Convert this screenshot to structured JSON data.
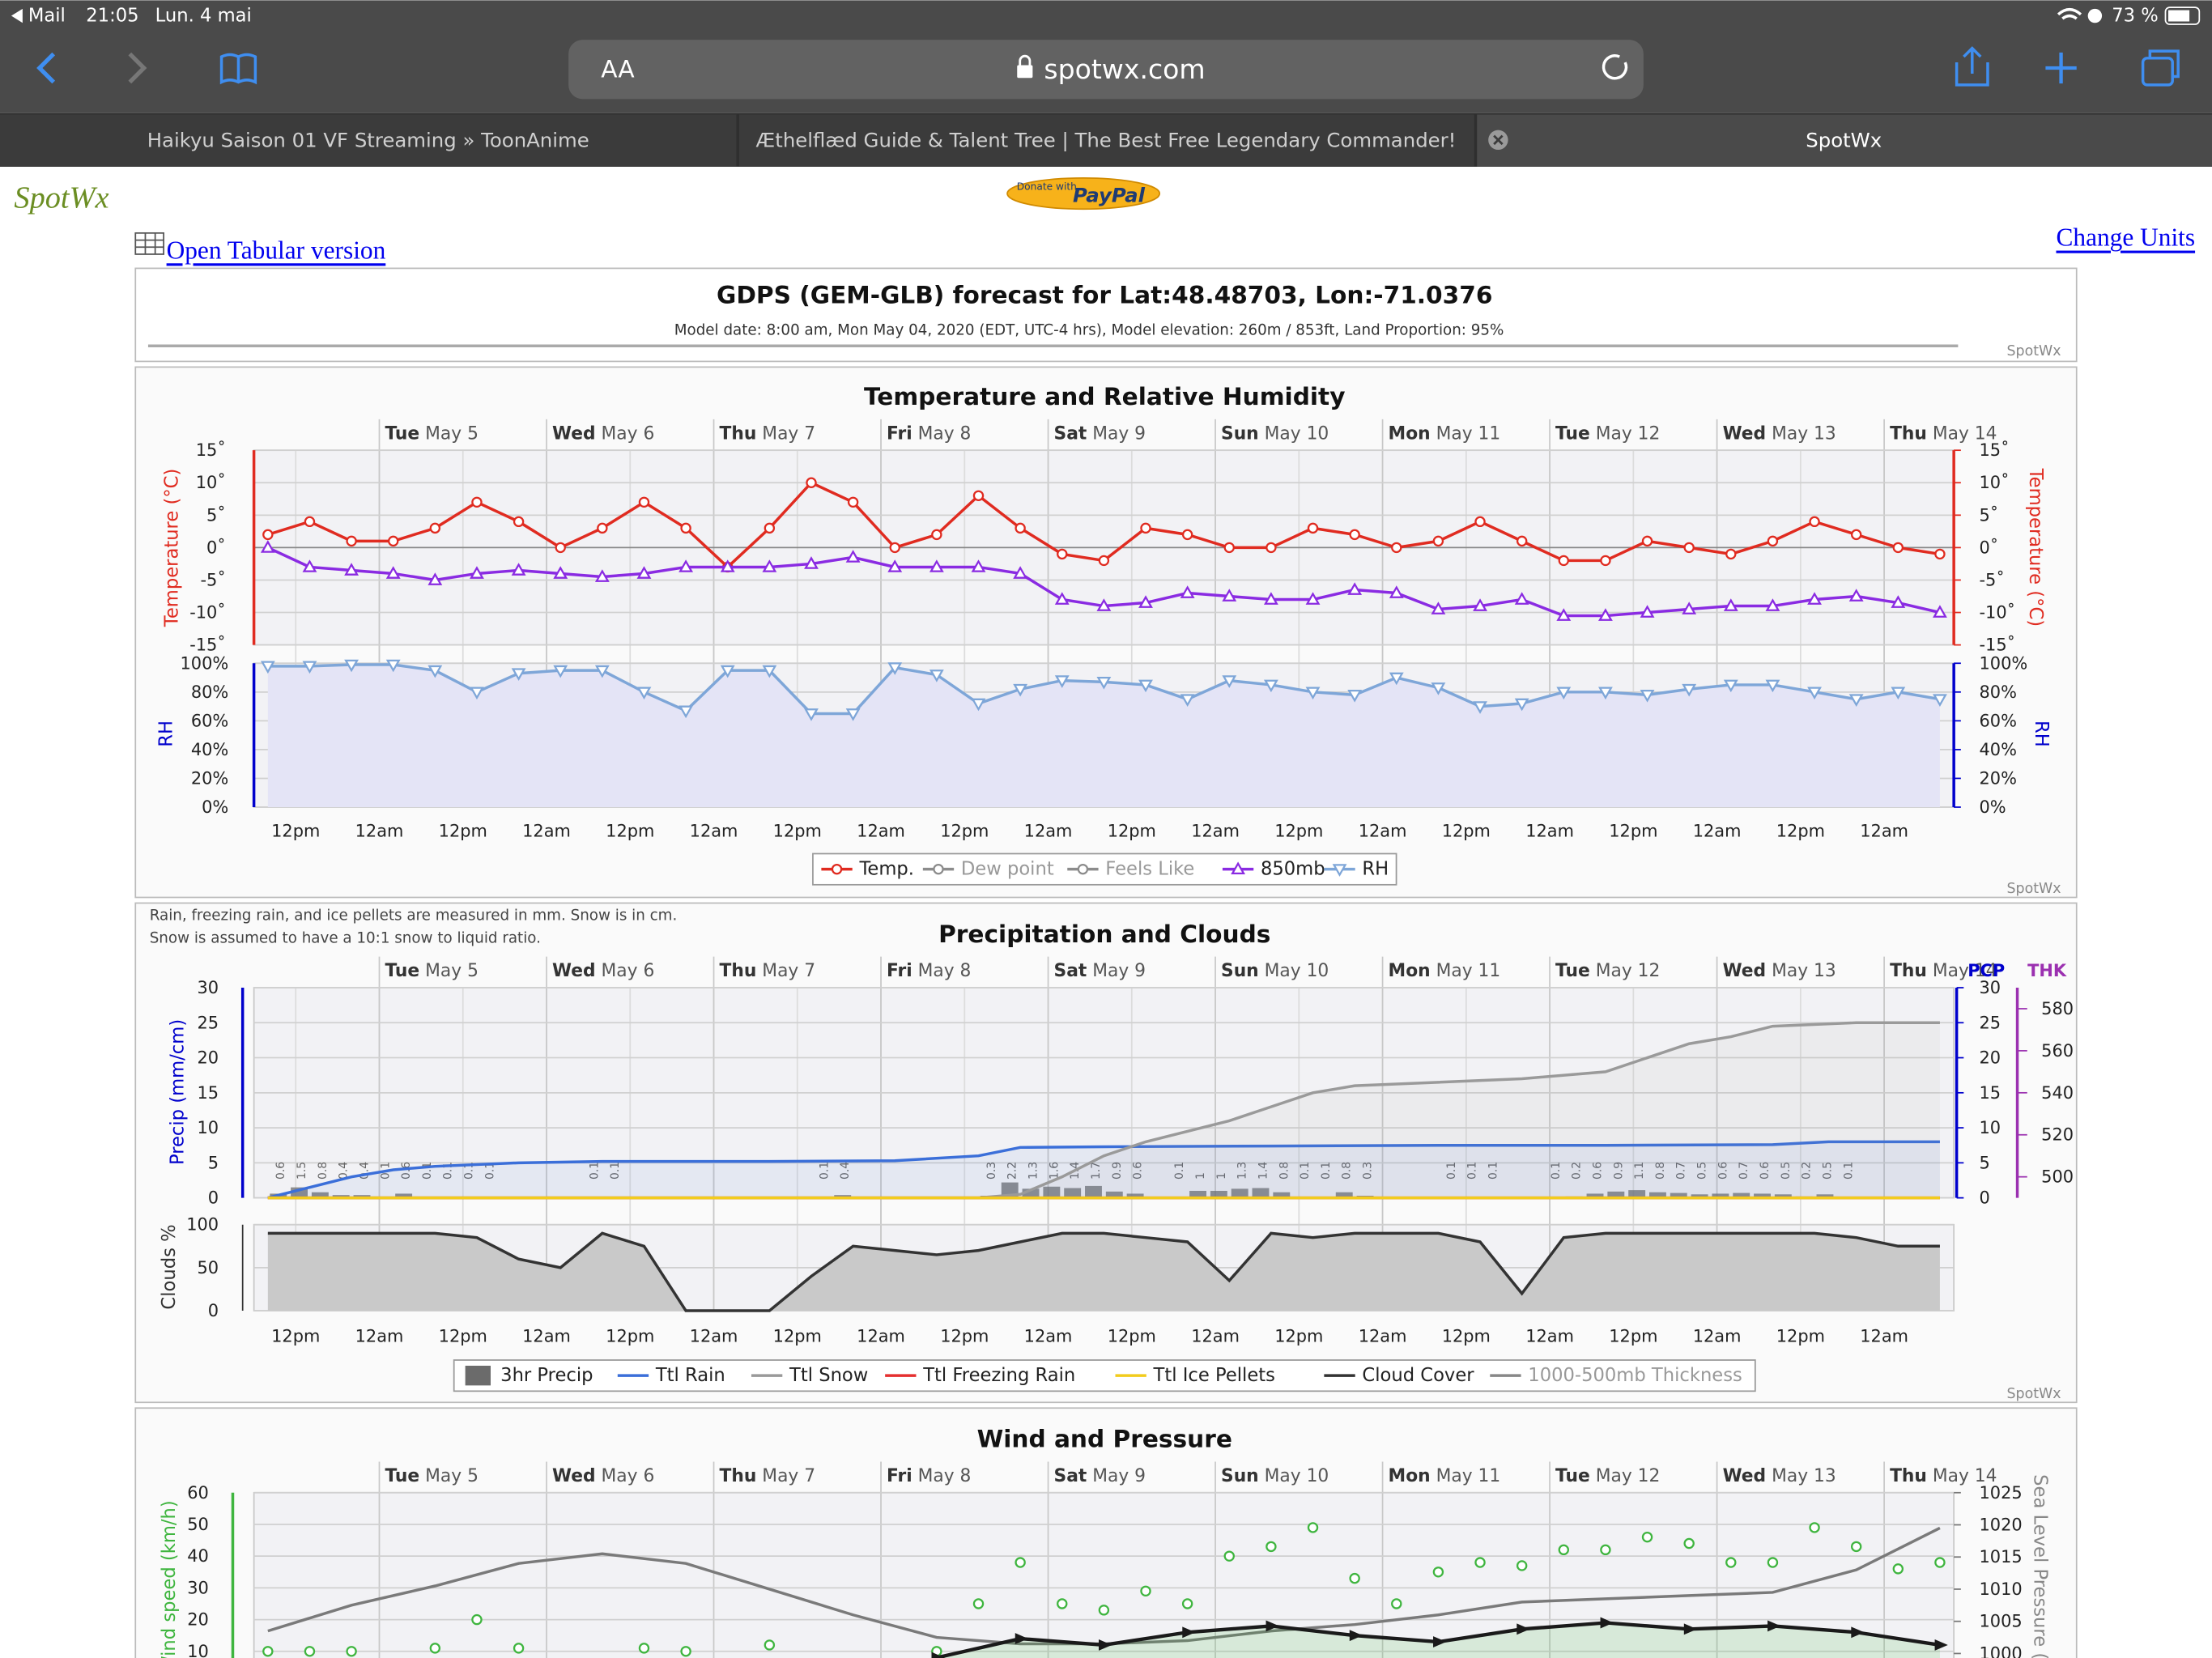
{
  "status_bar": {
    "app": "Mail",
    "time": "21:05",
    "date": "Lun. 4 mai",
    "battery": "73 %"
  },
  "browser": {
    "text_size": "AA",
    "url": "spotwx.com",
    "tabs": [
      "Haikyu Saison 01 VF Streaming » ToonAnime",
      "Æthelflæd Guide & Talent Tree | The Best Free Legendary Commander!",
      "SpotWx"
    ]
  },
  "page": {
    "logo": "SpotWx",
    "paypal_small": "Donate with",
    "paypal": "PayPal",
    "tabular_link": "Open Tabular version",
    "units_link": "Change Units",
    "watermark": "SpotWx"
  },
  "header": {
    "title": "GDPS (GEM-GLB) forecast for Lat:48.48703, Lon:-71.0376",
    "subtitle": "Model date: 8:00 am, Mon May 04, 2020 (EDT, UTC-4 hrs), Model elevation:  260m / 853ft, Land Proportion: 95%"
  },
  "time_axis": {
    "xlim": [
      6,
      250
    ],
    "day_ticks": [
      {
        "value": 24,
        "day": "Tue",
        "date": "May 5"
      },
      {
        "value": 48,
        "day": "Wed",
        "date": "May 6"
      },
      {
        "value": 72,
        "day": "Thu",
        "date": "May 7"
      },
      {
        "value": 96,
        "day": "Fri",
        "date": "May 8"
      },
      {
        "value": 120,
        "day": "Sat",
        "date": "May 9"
      },
      {
        "value": 144,
        "day": "Sun",
        "date": "May 10"
      },
      {
        "value": 168,
        "day": "Mon",
        "date": "May 11"
      },
      {
        "value": 192,
        "day": "Tue",
        "date": "May 12"
      },
      {
        "value": 216,
        "day": "Wed",
        "date": "May 13"
      },
      {
        "value": 240,
        "day": "Thu",
        "date": "May 14"
      }
    ],
    "hour_ticks": [
      {
        "value": 12,
        "label": "12pm"
      },
      {
        "value": 24,
        "label": "12am"
      },
      {
        "value": 36,
        "label": "12pm"
      },
      {
        "value": 48,
        "label": "12am"
      },
      {
        "value": 60,
        "label": "12pm"
      },
      {
        "value": 72,
        "label": "12am"
      },
      {
        "value": 84,
        "label": "12pm"
      },
      {
        "value": 96,
        "label": "12am"
      },
      {
        "value": 108,
        "label": "12pm"
      },
      {
        "value": 120,
        "label": "12am"
      },
      {
        "value": 132,
        "label": "12pm"
      },
      {
        "value": 144,
        "label": "12am"
      },
      {
        "value": 156,
        "label": "12pm"
      },
      {
        "value": 168,
        "label": "12am"
      },
      {
        "value": 180,
        "label": "12pm"
      },
      {
        "value": 192,
        "label": "12am"
      },
      {
        "value": 204,
        "label": "12pm"
      },
      {
        "value": 216,
        "label": "12am"
      },
      {
        "value": 228,
        "label": "12pm"
      },
      {
        "value": 240,
        "label": "12am"
      }
    ]
  },
  "charts": [
    {
      "type": "line",
      "title": "Temperature and Relative Humidity",
      "ylabel": "Temperature (°C)",
      "ylim": [
        -15,
        15
      ],
      "yticks": [
        {
          "value": 15,
          "label": "15˚"
        },
        {
          "value": 10,
          "label": "10˚"
        },
        {
          "value": 5,
          "label": "5˚"
        },
        {
          "value": 0,
          "label": "0˚"
        },
        {
          "value": -5,
          "label": "-5˚"
        },
        {
          "value": -10,
          "label": "-10˚"
        },
        {
          "value": -15,
          "label": "-15˚"
        }
      ],
      "rh_label": "RH",
      "rh_ylim": [
        0,
        100
      ],
      "rh_yticks": [
        {
          "value": 100,
          "label": "100%"
        },
        {
          "value": 80,
          "label": "80%"
        },
        {
          "value": 60,
          "label": "60%"
        },
        {
          "value": 40,
          "label": "40%"
        },
        {
          "value": 20,
          "label": "20%"
        },
        {
          "value": 0,
          "label": "0%"
        }
      ],
      "hours": [
        8,
        14,
        20,
        26,
        32,
        38,
        44,
        50,
        56,
        62,
        68,
        74,
        80,
        86,
        92,
        98,
        104,
        110,
        116,
        122,
        128,
        134,
        140,
        146,
        152,
        158,
        164,
        170,
        176,
        182,
        188,
        194,
        200,
        206,
        212,
        218,
        224,
        230,
        236,
        242,
        248
      ],
      "series": [
        {
          "name": "Temp.",
          "color": "#e02b20",
          "marker": "circle",
          "values": [
            2,
            4,
            1,
            1,
            3,
            7,
            4,
            0,
            3,
            7,
            3,
            -3,
            3,
            10,
            7,
            0,
            2,
            8,
            3,
            -1,
            -2,
            3,
            2,
            0,
            0,
            3,
            2,
            0,
            1,
            4,
            1,
            -2,
            -2,
            1,
            0,
            -1,
            1,
            4,
            2,
            0,
            -1
          ]
        },
        {
          "name": "Dew point",
          "color": "#8c8c8c",
          "marker": "diamond",
          "hidden": true
        },
        {
          "name": "Feels Like",
          "color": "#8c8c8c",
          "marker": "square",
          "hidden": true
        },
        {
          "name": "850mb",
          "color": "#8a2be2",
          "marker": "triangle-up",
          "values": [
            0,
            -3,
            -3.5,
            -4,
            -5,
            -4,
            -3.5,
            -4,
            -4.5,
            -4,
            -3,
            -3,
            -3,
            -2.5,
            -1.5,
            -3,
            -3,
            -3,
            -4,
            -8,
            -9,
            -8.5,
            -7,
            -7.5,
            -8,
            -8,
            -6.5,
            -7,
            -9.5,
            -9,
            -8,
            -10.5,
            -10.5,
            -10,
            -9.5,
            -9,
            -9,
            -8,
            -7.5,
            -8.5,
            -10
          ]
        },
        {
          "name": "RH",
          "color": "#7ea6d8",
          "marker": "triangle-down",
          "axis": "rh",
          "values": [
            98,
            98,
            99,
            99,
            95,
            80,
            93,
            95,
            95,
            80,
            67,
            95,
            95,
            65,
            65,
            97,
            92,
            72,
            82,
            88,
            87,
            85,
            75,
            88,
            85,
            80,
            78,
            90,
            83,
            70,
            72,
            80,
            80,
            78,
            82,
            85,
            85,
            80,
            75,
            80,
            75
          ]
        }
      ]
    },
    {
      "type": "bar+line",
      "title": "Precipitation and Clouds",
      "note": [
        "Rain, freezing rain, and ice pellets are measured in mm. Snow is in cm.",
        "Snow is assumed to have a 10:1 snow to liquid ratio."
      ],
      "ylabel": "Precip (mm/cm)",
      "ylim": [
        0,
        30
      ],
      "yticks": [
        0,
        5,
        10,
        15,
        20,
        25,
        30
      ],
      "right_label": "PCP",
      "y2label": "THK",
      "y2lim": [
        490,
        590
      ],
      "y2ticks": [
        500,
        520,
        540,
        560,
        580
      ],
      "clouds_label": "Clouds %",
      "clouds_ylim": [
        0,
        100
      ],
      "clouds_yticks": [
        0,
        50,
        100
      ],
      "hours": [
        8,
        14,
        20,
        26,
        32,
        38,
        44,
        50,
        56,
        62,
        68,
        74,
        80,
        86,
        92,
        98,
        104,
        110,
        116,
        122,
        128,
        134,
        140,
        146,
        152,
        158,
        164,
        170,
        176,
        182,
        188,
        194,
        200,
        206,
        212,
        218,
        224,
        230,
        236,
        242,
        248
      ],
      "series": [
        {
          "name": "3hr Precip",
          "color": "#6b6b6b",
          "kind": "bar",
          "hours": [
            9.5,
            12.5,
            15.5,
            18.5,
            21.5,
            24.5,
            27.5,
            30.5,
            33.5,
            36.5,
            39.5,
            54.5,
            57.5,
            87.5,
            90.5,
            111.5,
            114.5,
            117.5,
            120.5,
            123.5,
            126.5,
            129.5,
            132.5,
            138.5,
            141.5,
            144.5,
            147.5,
            150.5,
            153.5,
            156.5,
            159.5,
            162.5,
            165.5,
            177.5,
            180.5,
            183.5,
            192.5,
            195.5,
            198.5,
            201.5,
            204.5,
            207.5,
            210.5,
            213.5,
            216.5,
            219.5,
            222.5,
            225.5,
            228.5,
            231.5,
            234.5
          ],
          "values": [
            0.6,
            1.5,
            0.8,
            0.4,
            0.4,
            0.1,
            0.6,
            0.1,
            0.1,
            0.1,
            0.1,
            0.1,
            0.1,
            0.1,
            0.4,
            0.3,
            2.2,
            1.3,
            1.6,
            1.4,
            1.7,
            0.9,
            0.6,
            0.1,
            1,
            1,
            1.3,
            1.4,
            0.8,
            0.1,
            0.1,
            0.8,
            0.3,
            0.1,
            0.1,
            0.1,
            0.1,
            0.2,
            0.6,
            0.9,
            1.1,
            0.8,
            0.7,
            0.5,
            0.6,
            0.7,
            0.6,
            0.5,
            0.2,
            0.5,
            0.1
          ]
        },
        {
          "name": "Ttl Rain",
          "color": "#3b6fd9",
          "kind": "line",
          "hours": [
            8,
            14,
            20,
            26,
            32,
            44,
            56,
            80,
            98,
            110,
            116,
            128,
            152,
            176,
            200,
            224,
            232,
            248
          ],
          "values": [
            0,
            1.5,
            3,
            4,
            4.5,
            5,
            5.2,
            5.2,
            5.3,
            6,
            7.2,
            7.3,
            7.4,
            7.5,
            7.5,
            7.6,
            8,
            8
          ]
        },
        {
          "name": "Ttl Snow",
          "color": "#9a9a9a",
          "kind": "line",
          "hours": [
            8,
            110,
            116,
            122,
            128,
            134,
            140,
            146,
            152,
            158,
            164,
            176,
            188,
            200,
            206,
            212,
            218,
            224,
            236,
            248
          ],
          "values": [
            0,
            0,
            0.5,
            3,
            6,
            8,
            9.5,
            11,
            13,
            15,
            16,
            16.5,
            17,
            18,
            20,
            22,
            23,
            24.5,
            25,
            25
          ]
        },
        {
          "name": "Ttl Freezing Rain",
          "color": "#e53030",
          "kind": "line",
          "hours": [
            8,
            248
          ],
          "values": [
            0,
            0
          ]
        },
        {
          "name": "Ttl Ice Pellets",
          "color": "#f2cc1d",
          "kind": "line",
          "hours": [
            8,
            248
          ],
          "values": [
            0,
            0
          ]
        },
        {
          "name": "Cloud Cover",
          "color": "#333333",
          "kind": "area",
          "axis": "clouds",
          "values": [
            90,
            90,
            90,
            90,
            90,
            85,
            60,
            50,
            90,
            75,
            0,
            0,
            0,
            40,
            75,
            70,
            65,
            70,
            80,
            90,
            90,
            85,
            80,
            35,
            90,
            85,
            90,
            90,
            90,
            80,
            20,
            85,
            90,
            90,
            90,
            90,
            90,
            90,
            85,
            75,
            75
          ]
        },
        {
          "name": "1000-500mb Thickness",
          "color": "#888888",
          "kind": "line",
          "axis": "y2",
          "hidden": true
        }
      ]
    },
    {
      "type": "line",
      "title": "Wind and Pressure",
      "ylabel": "Wind speed (km/h)",
      "ylim": [
        0,
        60
      ],
      "yticks": [
        10,
        20,
        30,
        40,
        50,
        60
      ],
      "y2label": "Sea Level Pressure (hPa)",
      "y2lim": [
        995.4,
        1025
      ],
      "y2ticks": [
        1000,
        1005,
        1010,
        1015,
        1020,
        1025
      ],
      "series": [
        {
          "color": "#7a7a7a",
          "kind": "line",
          "axis": "y2",
          "hours": [
            8,
            20,
            32,
            44,
            56,
            68,
            80,
            92,
            104,
            116,
            128,
            140,
            152,
            164,
            176,
            188,
            200,
            212,
            224,
            236,
            248
          ],
          "values": [
            1003.5,
            1007.5,
            1010.5,
            1014,
            1015.5,
            1014,
            1010,
            1006,
            1002.5,
            1001.5,
            1001.5,
            1002,
            1003.5,
            1004.5,
            1006,
            1008,
            1008.5,
            1009,
            1009.5,
            1013,
            1019.5
          ]
        },
        {
          "color": "#3fb53f",
          "kind": "circles",
          "hours": [
            8,
            14,
            20,
            32,
            38,
            44,
            62,
            68,
            80,
            104,
            110,
            116,
            122,
            128,
            134,
            140,
            146,
            152,
            158,
            164,
            170,
            176,
            182,
            188,
            194,
            200,
            206,
            212,
            218,
            224,
            230,
            236,
            242,
            248
          ],
          "values": [
            10,
            10,
            10,
            11,
            20,
            11,
            11,
            10,
            12,
            10,
            25,
            38,
            25,
            23,
            29,
            25,
            40,
            43,
            49,
            33,
            25,
            35,
            38,
            37,
            42,
            42,
            46,
            44,
            38,
            38,
            49,
            43,
            36,
            38
          ]
        },
        {
          "color": "#1a1a1a",
          "kind": "area",
          "hours": [
            104,
            116,
            128,
            140,
            152,
            164,
            176,
            188,
            200,
            212,
            224,
            236,
            248
          ],
          "values": [
            8,
            14,
            12,
            16,
            18,
            15,
            13,
            17,
            19,
            17,
            18,
            16,
            12
          ]
        }
      ]
    }
  ]
}
